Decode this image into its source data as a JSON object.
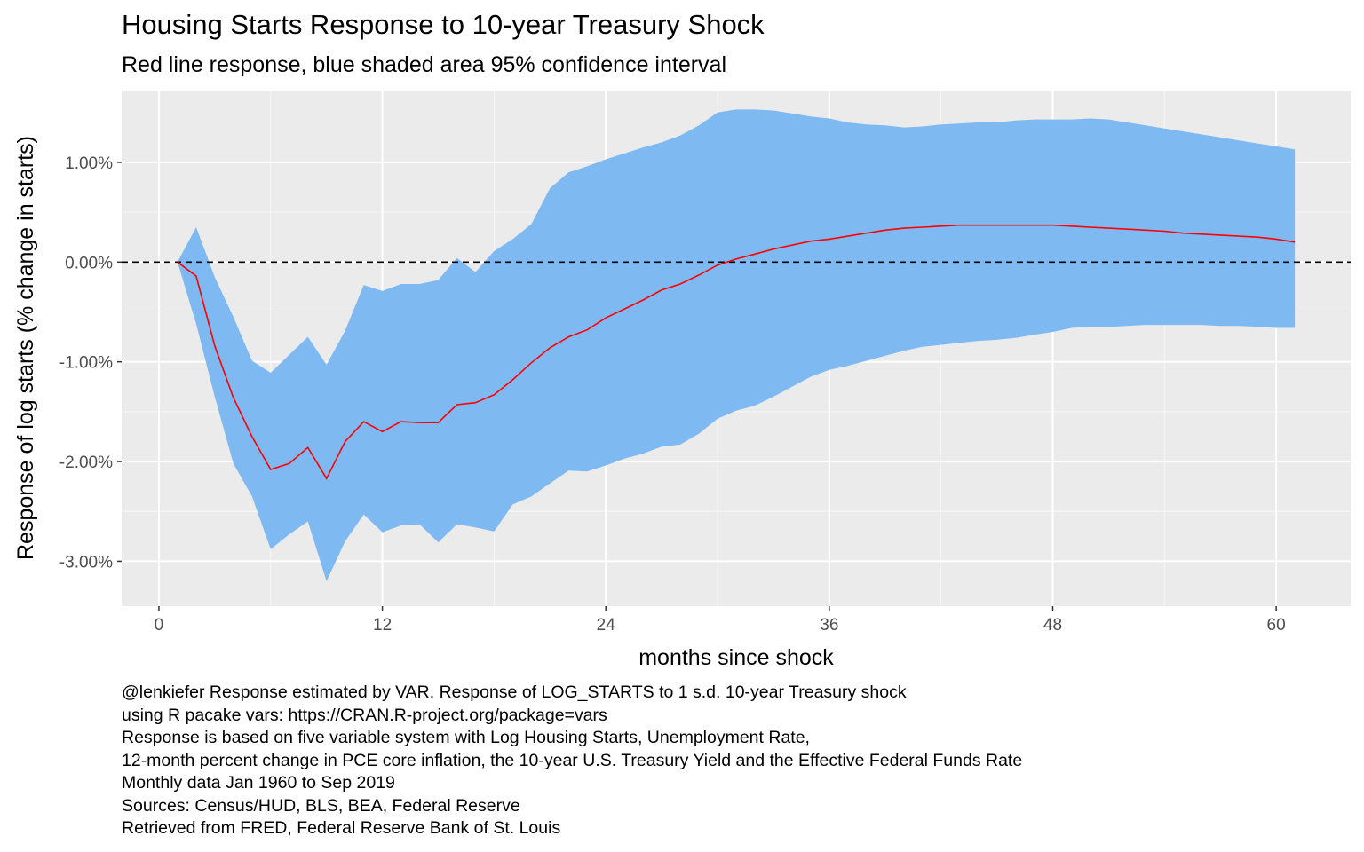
{
  "chart_data": {
    "type": "area",
    "title": "Housing Starts Response to 10-year Treasury Shock",
    "subtitle": "Red line response, blue shaded area 95% confidence interval",
    "xlabel": "months since shock",
    "ylabel": "Response of log starts (% change in starts)",
    "xlim": [
      -2,
      64
    ],
    "ylim": [
      -3.45,
      1.72
    ],
    "x_ticks": [
      0,
      12,
      24,
      36,
      48,
      60
    ],
    "x_tick_labels": [
      "0",
      "12",
      "24",
      "36",
      "48",
      "60"
    ],
    "y_ticks": [
      -3,
      -2,
      -1,
      0,
      1
    ],
    "y_tick_labels": [
      "-3.00%",
      "-2.00%",
      "-1.00%",
      "0.00%",
      "1.00%"
    ],
    "grid": true,
    "reference_line": {
      "y": 0,
      "style": "dashed",
      "color": "#000000"
    },
    "x": [
      1,
      2,
      3,
      4,
      5,
      6,
      7,
      8,
      9,
      10,
      11,
      12,
      13,
      14,
      15,
      16,
      17,
      18,
      19,
      20,
      21,
      22,
      23,
      24,
      25,
      26,
      27,
      28,
      29,
      30,
      31,
      32,
      33,
      34,
      35,
      36,
      37,
      38,
      39,
      40,
      41,
      42,
      43,
      44,
      45,
      46,
      47,
      48,
      49,
      50,
      51,
      52,
      53,
      54,
      55,
      56,
      57,
      58,
      59,
      60,
      61
    ],
    "series": [
      {
        "role": "response",
        "color": "#ff0000",
        "values": [
          0,
          -0.14,
          -0.84,
          -1.36,
          -1.75,
          -2.08,
          -2.02,
          -1.86,
          -2.17,
          -1.8,
          -1.6,
          -1.7,
          -1.6,
          -1.61,
          -1.61,
          -1.43,
          -1.41,
          -1.33,
          -1.18,
          -1.01,
          -0.86,
          -0.75,
          -0.68,
          -0.56,
          -0.47,
          -0.38,
          -0.28,
          -0.22,
          -0.13,
          -0.03,
          0.03,
          0.08,
          0.13,
          0.17,
          0.21,
          0.23,
          0.26,
          0.29,
          0.32,
          0.34,
          0.35,
          0.36,
          0.37,
          0.37,
          0.37,
          0.37,
          0.37,
          0.37,
          0.36,
          0.35,
          0.34,
          0.33,
          0.32,
          0.31,
          0.29,
          0.28,
          0.27,
          0.26,
          0.25,
          0.23,
          0.2
        ]
      },
      {
        "role": "ci_upper",
        "color": "#7fb9f2",
        "values": [
          0,
          0.35,
          -0.15,
          -0.55,
          -0.99,
          -1.11,
          -0.93,
          -0.75,
          -1.03,
          -0.69,
          -0.23,
          -0.29,
          -0.22,
          -0.22,
          -0.18,
          0.04,
          -0.1,
          0.11,
          0.23,
          0.38,
          0.74,
          0.9,
          0.96,
          1.03,
          1.09,
          1.15,
          1.2,
          1.27,
          1.37,
          1.5,
          1.53,
          1.53,
          1.52,
          1.49,
          1.46,
          1.44,
          1.4,
          1.38,
          1.37,
          1.35,
          1.36,
          1.38,
          1.39,
          1.4,
          1.4,
          1.42,
          1.43,
          1.43,
          1.43,
          1.44,
          1.43,
          1.4,
          1.37,
          1.34,
          1.31,
          1.28,
          1.25,
          1.22,
          1.19,
          1.16,
          1.13
        ]
      },
      {
        "role": "ci_lower",
        "color": "#7fb9f2",
        "values": [
          0,
          -0.62,
          -1.35,
          -2.02,
          -2.35,
          -2.88,
          -2.73,
          -2.6,
          -3.2,
          -2.8,
          -2.53,
          -2.71,
          -2.64,
          -2.63,
          -2.81,
          -2.63,
          -2.66,
          -2.7,
          -2.43,
          -2.35,
          -2.22,
          -2.09,
          -2.1,
          -2.04,
          -1.97,
          -1.92,
          -1.85,
          -1.83,
          -1.72,
          -1.57,
          -1.49,
          -1.44,
          -1.35,
          -1.25,
          -1.15,
          -1.08,
          -1.04,
          -0.99,
          -0.94,
          -0.89,
          -0.85,
          -0.83,
          -0.81,
          -0.79,
          -0.78,
          -0.76,
          -0.73,
          -0.7,
          -0.66,
          -0.65,
          -0.65,
          -0.64,
          -0.63,
          -0.63,
          -0.63,
          -0.63,
          -0.64,
          -0.64,
          -0.65,
          -0.66,
          -0.66
        ]
      }
    ]
  },
  "caption_lines": [
    "@lenkiefer Response estimated by VAR. Response of LOG_STARTS to 1 s.d. 10-year Treasury shock",
    "using R pacake vars: https://CRAN.R-project.org/package=vars",
    "Response is based on five variable system with Log Housing Starts, Unemployment Rate,",
    "12-month percent change in PCE core inflation, the 10-year U.S. Treasury Yield and the Effective Federal Funds Rate",
    "Monthly data Jan 1960 to Sep 2019",
    "Sources: Census/HUD, BLS, BEA, Federal Reserve",
    "Retrieved from FRED, Federal Reserve Bank of St. Louis"
  ]
}
